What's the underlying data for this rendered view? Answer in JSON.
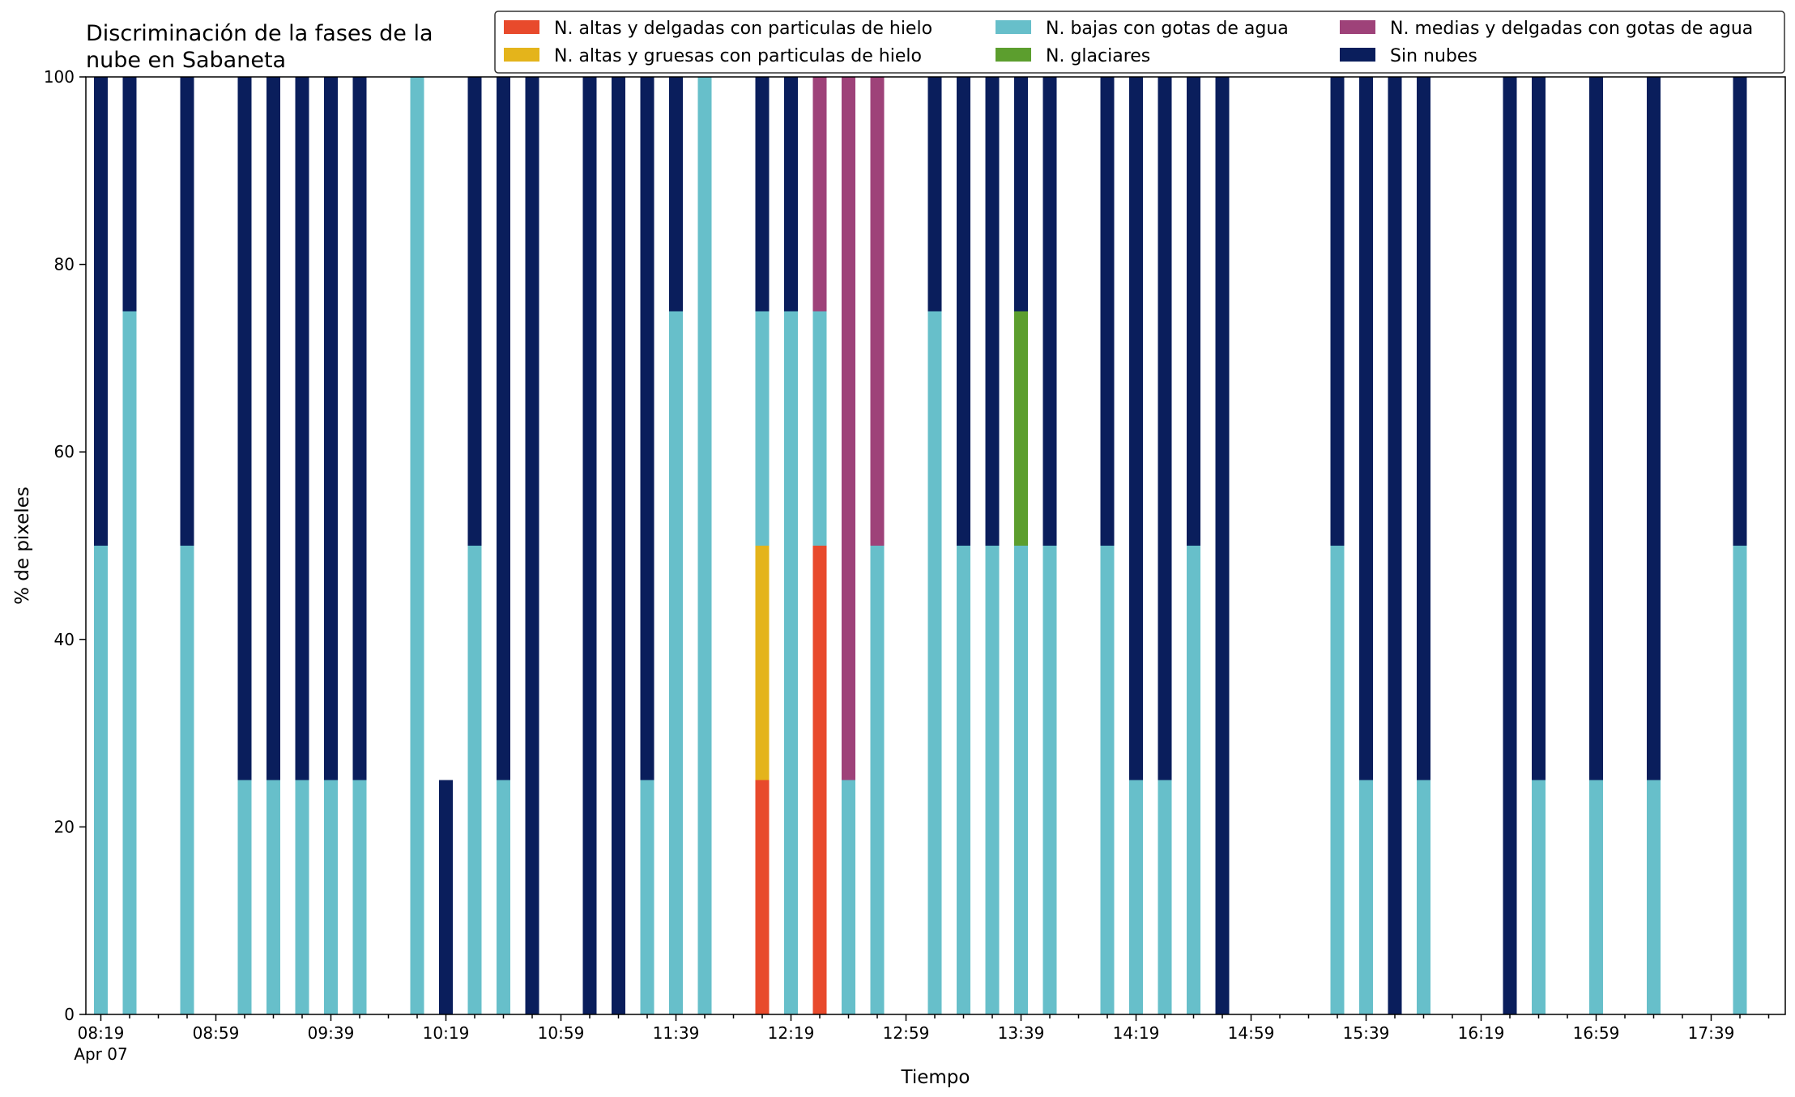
{
  "chart_data": {
    "type": "bar",
    "stacked": true,
    "title_lines": [
      "Discriminación de la fases de la",
      "nube en Sabaneta"
    ],
    "xlabel": "Tiempo",
    "ylabel": "% de pixeles",
    "ylim": [
      0,
      100
    ],
    "yticks": [
      "0",
      "20",
      "40",
      "60",
      "80",
      "100"
    ],
    "xtick_labels": [
      "08:19",
      "08:59",
      "09:39",
      "10:19",
      "10:59",
      "11:39",
      "12:19",
      "12:59",
      "13:39",
      "14:19",
      "14:59",
      "15:39",
      "16:19",
      "16:59",
      "17:39"
    ],
    "date_label": "Apr 07",
    "grid": false,
    "legend_position": "top-right",
    "categories": [
      "08:19",
      "08:29",
      "08:39",
      "08:49",
      "08:59",
      "09:09",
      "09:19",
      "09:29",
      "09:39",
      "09:49",
      "09:59",
      "10:09",
      "10:19",
      "10:29",
      "10:39",
      "10:49",
      "10:59",
      "11:09",
      "11:19",
      "11:29",
      "11:39",
      "11:49",
      "11:59",
      "12:09",
      "12:19",
      "12:29",
      "12:39",
      "12:49",
      "12:59",
      "13:09",
      "13:19",
      "13:29",
      "13:39",
      "13:49",
      "13:59",
      "14:09",
      "14:19",
      "14:29",
      "14:39",
      "14:49",
      "14:59",
      "15:09",
      "15:19",
      "15:29",
      "15:39",
      "15:49",
      "15:59",
      "16:09",
      "16:19",
      "16:29",
      "16:39",
      "16:49",
      "16:59",
      "17:09",
      "17:19",
      "17:29",
      "17:39",
      "17:49",
      "17:59"
    ],
    "series": [
      {
        "name": "N. altas y delgadas con particulas de hielo",
        "color": "#e84a2c",
        "values": [
          0,
          0,
          0,
          0,
          0,
          0,
          0,
          0,
          0,
          0,
          0,
          0,
          0,
          0,
          0,
          0,
          0,
          0,
          0,
          0,
          0,
          0,
          0,
          25,
          0,
          50,
          0,
          0,
          0,
          0,
          0,
          0,
          0,
          0,
          0,
          0,
          0,
          0,
          0,
          0,
          0,
          0,
          0,
          0,
          0,
          0,
          0,
          0,
          0,
          0,
          0,
          0,
          0,
          0,
          0,
          0,
          0,
          0,
          0
        ]
      },
      {
        "name": "N. altas y gruesas con particulas de hielo",
        "color": "#e4b41b",
        "values": [
          0,
          0,
          0,
          0,
          0,
          0,
          0,
          0,
          0,
          0,
          0,
          0,
          0,
          0,
          0,
          0,
          0,
          0,
          0,
          0,
          0,
          0,
          0,
          25,
          0,
          0,
          0,
          0,
          0,
          0,
          0,
          0,
          0,
          0,
          0,
          0,
          0,
          0,
          0,
          0,
          0,
          0,
          0,
          0,
          0,
          0,
          0,
          0,
          0,
          0,
          0,
          0,
          0,
          0,
          0,
          0,
          0,
          0,
          0
        ]
      },
      {
        "name": "N. bajas con gotas de agua",
        "color": "#67bfca",
        "values": [
          50,
          75,
          0,
          50,
          0,
          25,
          25,
          25,
          25,
          25,
          0,
          100,
          0,
          50,
          25,
          0,
          0,
          0,
          0,
          25,
          75,
          100,
          0,
          25,
          75,
          25,
          25,
          50,
          0,
          75,
          50,
          50,
          50,
          50,
          0,
          50,
          25,
          25,
          50,
          0,
          0,
          0,
          0,
          50,
          25,
          0,
          25,
          0,
          0,
          0,
          25,
          0,
          25,
          0,
          25,
          0,
          0,
          50,
          0
        ]
      },
      {
        "name": "N. glaciares",
        "color": "#5c9e2e",
        "values": [
          0,
          0,
          0,
          0,
          0,
          0,
          0,
          0,
          0,
          0,
          0,
          0,
          0,
          0,
          0,
          0,
          0,
          0,
          0,
          0,
          0,
          0,
          0,
          0,
          0,
          0,
          0,
          0,
          0,
          0,
          0,
          0,
          25,
          0,
          0,
          0,
          0,
          0,
          0,
          0,
          0,
          0,
          0,
          0,
          0,
          0,
          0,
          0,
          0,
          0,
          0,
          0,
          0,
          0,
          0,
          0,
          0,
          0,
          0
        ]
      },
      {
        "name": "N. medias y delgadas con gotas de agua",
        "color": "#9e4279",
        "values": [
          0,
          0,
          0,
          0,
          0,
          0,
          0,
          0,
          0,
          0,
          0,
          0,
          0,
          0,
          0,
          0,
          0,
          0,
          0,
          0,
          0,
          0,
          0,
          0,
          0,
          25,
          75,
          50,
          0,
          0,
          0,
          0,
          0,
          0,
          0,
          0,
          0,
          0,
          0,
          0,
          0,
          0,
          0,
          0,
          0,
          0,
          0,
          0,
          0,
          0,
          0,
          0,
          0,
          0,
          0,
          0,
          0,
          0,
          0
        ]
      },
      {
        "name": "Sin nubes",
        "color": "#0a1e5c",
        "values": [
          50,
          25,
          0,
          50,
          0,
          75,
          75,
          75,
          75,
          75,
          0,
          0,
          25,
          50,
          75,
          100,
          0,
          100,
          100,
          75,
          25,
          0,
          0,
          25,
          25,
          0,
          0,
          0,
          0,
          25,
          50,
          50,
          25,
          50,
          0,
          50,
          75,
          75,
          50,
          100,
          0,
          0,
          0,
          50,
          75,
          100,
          75,
          0,
          0,
          100,
          75,
          0,
          75,
          0,
          75,
          0,
          0,
          50,
          0
        ]
      }
    ]
  }
}
